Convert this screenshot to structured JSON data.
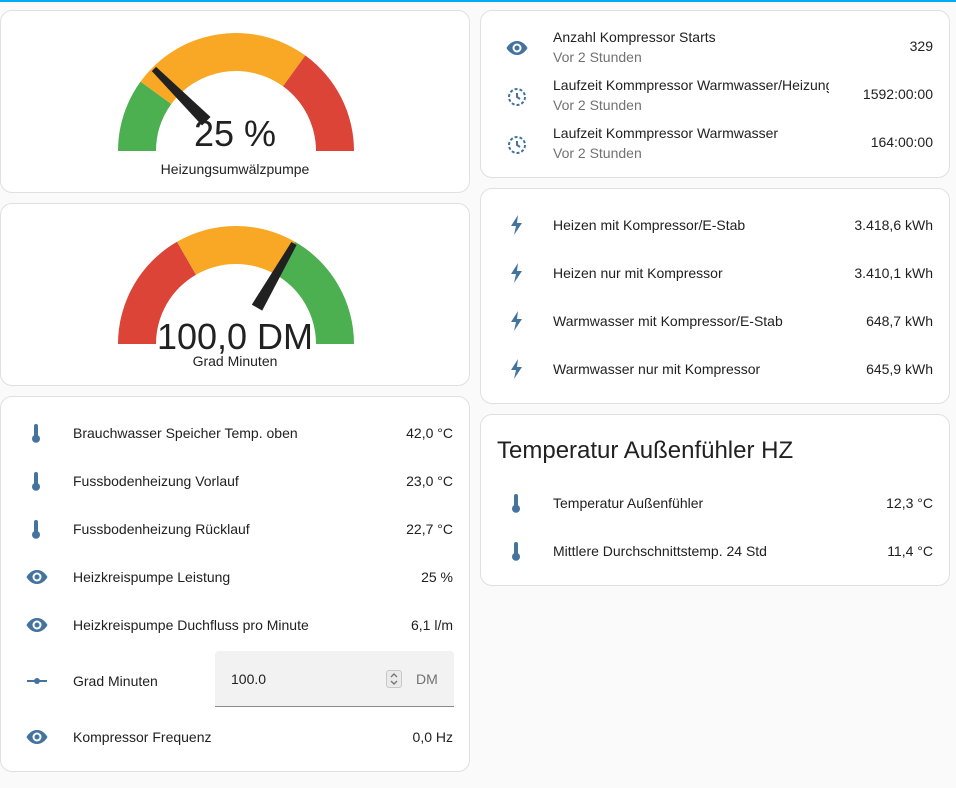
{
  "colors": {
    "icon": "#44739e",
    "green": "#4caf50",
    "yellow": "#f8a824",
    "red": "#db4437",
    "needle": "#212121",
    "accent": "#03a9f4"
  },
  "gauges": [
    {
      "value_text": "25 %",
      "name": "Heizungsumwälzpumpe",
      "value": 25,
      "min": 0,
      "max": 100,
      "segments": [
        {
          "from": 0,
          "to": 20,
          "color": "#4caf50"
        },
        {
          "from": 20,
          "to": 70,
          "color": "#f8a824"
        },
        {
          "from": 70,
          "to": 100,
          "color": "#db4437"
        }
      ]
    },
    {
      "value_text": "100,0 DM",
      "name": "Grad Minuten",
      "value": 100,
      "min": -300,
      "max": 300,
      "segments": [
        {
          "from": -300,
          "to": -100,
          "color": "#db4437"
        },
        {
          "from": -100,
          "to": 100,
          "color": "#f8a824"
        },
        {
          "from": 100,
          "to": 300,
          "color": "#4caf50"
        }
      ]
    }
  ],
  "sensors_left": [
    {
      "icon": "thermometer-icon",
      "label": "Brauchwasser Speicher Temp. oben",
      "value": "42,0 °C"
    },
    {
      "icon": "thermometer-icon",
      "label": "Fussbodenheizung Vorlauf",
      "value": "23,0 °C"
    },
    {
      "icon": "thermometer-icon",
      "label": "Fussbodenheizung Rücklauf",
      "value": "22,7 °C"
    },
    {
      "icon": "eye-icon",
      "label": "Heizkreispumpe Leistung",
      "value": "25 %"
    },
    {
      "icon": "eye-icon",
      "label": "Heizkreispumpe Duchfluss pro Minute",
      "value": "6,1 l/m"
    }
  ],
  "grad_minuten_input": {
    "label": "Grad Minuten",
    "value": "100.0",
    "unit": "DM"
  },
  "kompressor_frequenz": {
    "label": "Kompressor Frequenz",
    "value": "0,0 Hz"
  },
  "compressor_stats": [
    {
      "icon": "eye-icon",
      "label": "Anzahl Kompressor Starts",
      "sub": "Vor 2 Stunden",
      "value": "329"
    },
    {
      "icon": "timer-icon",
      "label": "Laufzeit Kommpressor Warmwasser/Heizung",
      "sub": "Vor 2 Stunden",
      "value": "1592:00:00"
    },
    {
      "icon": "timer-icon",
      "label": "Laufzeit Kommpressor Warmwasser",
      "sub": "Vor 2 Stunden",
      "value": "164:00:00"
    }
  ],
  "energy": [
    {
      "icon": "flash-icon",
      "label": "Heizen mit Kompressor/E-Stab",
      "value": "3.418,6 kWh"
    },
    {
      "icon": "flash-icon",
      "label": "Heizen nur mit Kompressor",
      "value": "3.410,1 kWh"
    },
    {
      "icon": "flash-icon",
      "label": "Warmwasser mit Kompressor/E-Stab",
      "value": "648,7 kWh"
    },
    {
      "icon": "flash-icon",
      "label": "Warmwasser nur mit Kompressor",
      "value": "645,9 kWh"
    }
  ],
  "outdoor": {
    "title": "Temperatur Außenfühler HZ",
    "items": [
      {
        "icon": "thermometer-icon",
        "label": "Temperatur Außenfühler",
        "value": "12,3 °C"
      },
      {
        "icon": "thermometer-icon",
        "label": "Mittlere Durchschnittstemp. 24 Std",
        "value": "11,4 °C"
      }
    ]
  }
}
